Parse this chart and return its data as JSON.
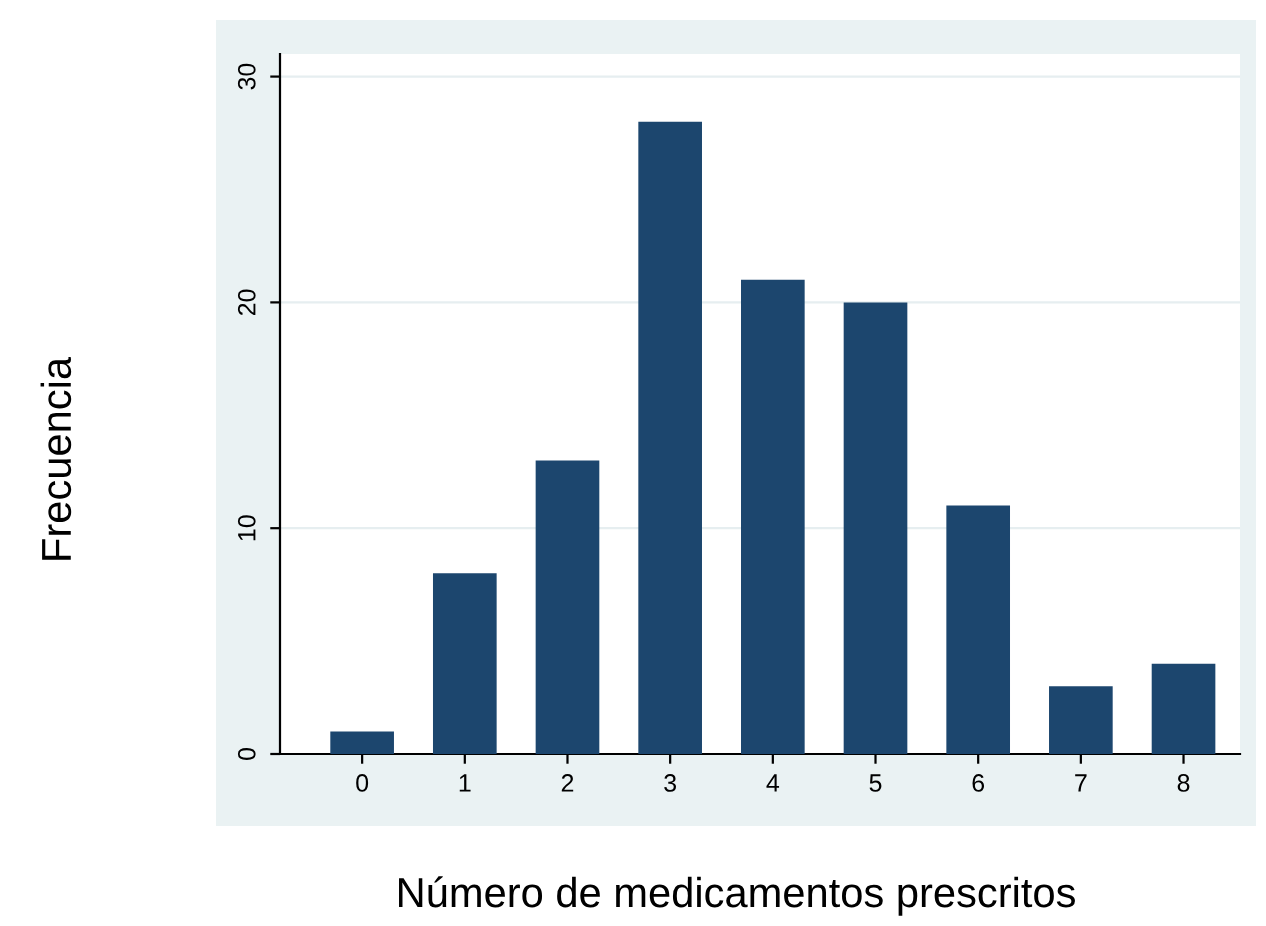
{
  "chart_data": {
    "type": "bar",
    "xlabel": "Número de medicamentos prescritos",
    "ylabel": "Frecuencia",
    "categories": [
      "0",
      "1",
      "2",
      "3",
      "4",
      "5",
      "6",
      "7",
      "8"
    ],
    "values": [
      1,
      8,
      13,
      28,
      21,
      20,
      11,
      3,
      4
    ],
    "color": "#1c466e",
    "ylim": [
      0,
      31
    ],
    "yticks": [
      0,
      10,
      20,
      30
    ],
    "grid": "y"
  }
}
